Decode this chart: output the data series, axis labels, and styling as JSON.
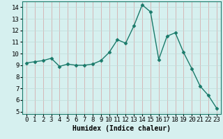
{
  "x": [
    0,
    1,
    2,
    3,
    4,
    5,
    6,
    7,
    8,
    9,
    10,
    11,
    12,
    13,
    14,
    15,
    16,
    17,
    18,
    19,
    20,
    21,
    22,
    23
  ],
  "y": [
    9.2,
    9.3,
    9.4,
    9.6,
    8.9,
    9.1,
    9.0,
    9.0,
    9.1,
    9.4,
    10.1,
    11.2,
    10.9,
    12.4,
    14.2,
    13.6,
    9.5,
    11.5,
    11.8,
    10.1,
    8.7,
    7.2,
    6.4,
    5.3
  ],
  "line_color": "#1a7a6a",
  "marker": "D",
  "marker_size": 2.5,
  "linewidth": 1.0,
  "bg_color": "#d6f0ef",
  "grid_color": "#c0dbd9",
  "grid_color2": "#d4a0a0",
  "xlabel": "Humidex (Indice chaleur)",
  "xlabel_fontsize": 7,
  "tick_fontsize": 6.5,
  "xlim": [
    -0.5,
    23.5
  ],
  "ylim": [
    4.8,
    14.5
  ],
  "yticks": [
    5,
    6,
    7,
    8,
    9,
    10,
    11,
    12,
    13,
    14
  ],
  "xticks": [
    0,
    1,
    2,
    3,
    4,
    5,
    6,
    7,
    8,
    9,
    10,
    11,
    12,
    13,
    14,
    15,
    16,
    17,
    18,
    19,
    20,
    21,
    22,
    23
  ]
}
